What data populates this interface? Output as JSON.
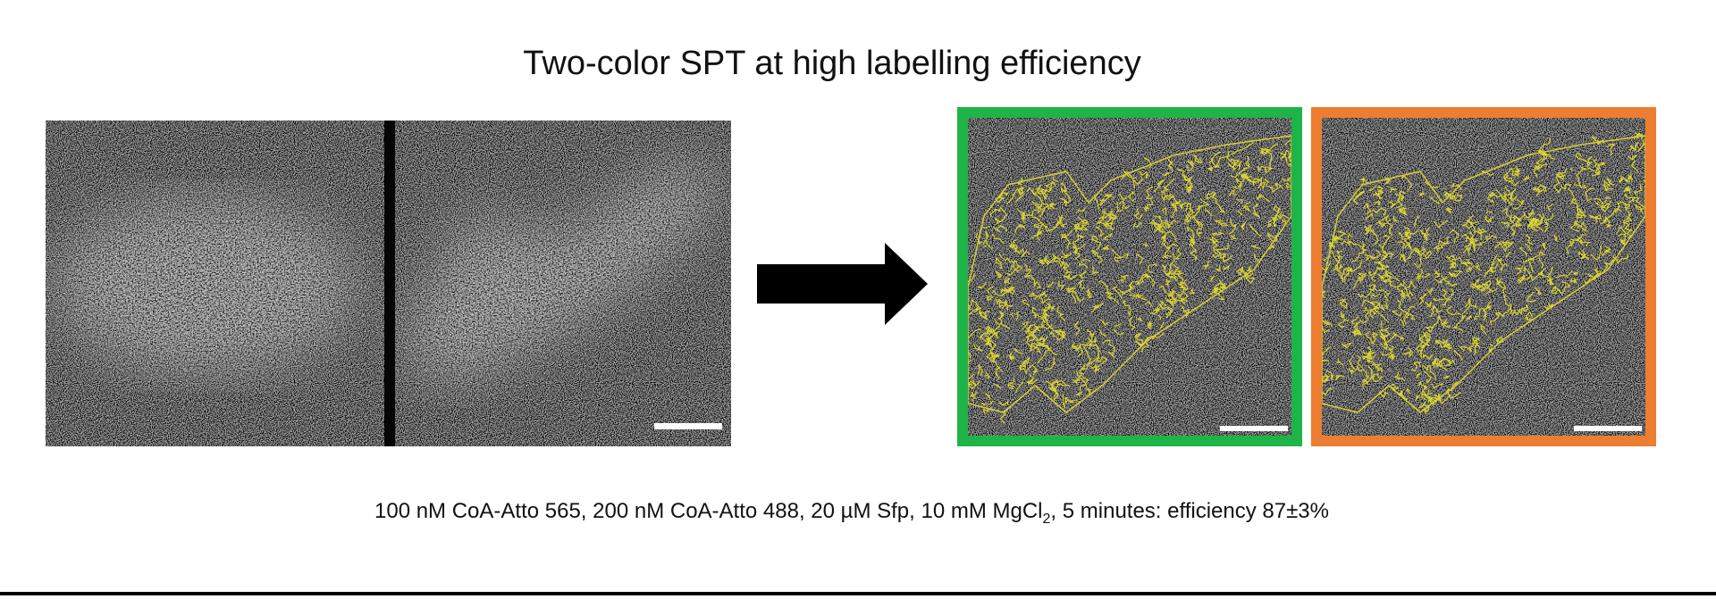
{
  "title": "Two-color SPT at high labelling efficiency",
  "caption": {
    "start": "100 nM CoA-Atto 565, 200 nM CoA-Atto 488, 20 µM Sfp, 10 mM MgCl",
    "subscript": "2",
    "end": ", 5 minutes: efficiency 87±3%"
  }
}
